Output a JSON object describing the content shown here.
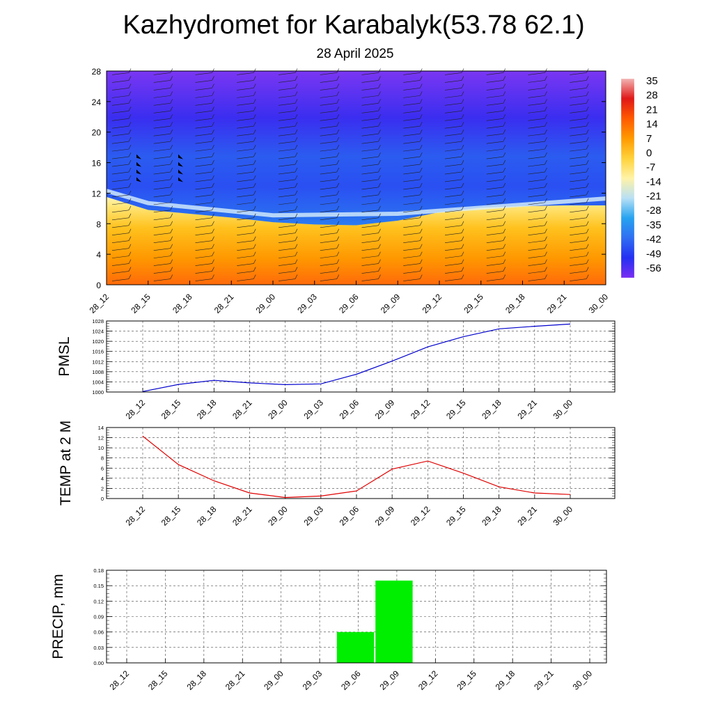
{
  "title": "Kazhydromet for Karabalyk(53.78 62.1)",
  "subtitle": "28 April 2025",
  "colors": {
    "pmsl_line": "#0000cc",
    "temp_line": "#e00000",
    "precip_bar": "#00ee00"
  },
  "chart_data": [
    {
      "type": "heatmap",
      "name": "cross-section",
      "y": {
        "ticks": [
          0,
          4,
          8,
          12,
          16,
          20,
          24,
          28
        ],
        "range": [
          0,
          28
        ]
      },
      "x_ticks": [
        "28_12",
        "28_15",
        "28_18",
        "28_21",
        "29_00",
        "29_03",
        "29_06",
        "29_09",
        "29_12",
        "29_15",
        "29_18",
        "29_21",
        "30_00"
      ],
      "freezing_level": [
        11.5,
        9.8,
        9.3,
        8.8,
        8.2,
        7.9,
        7.8,
        8.4,
        9.5,
        10.1,
        10.3,
        10.4,
        10.4
      ],
      "colorbar": {
        "labels": [
          "35",
          "28",
          "21",
          "14",
          "7",
          "0",
          "-7",
          "-14",
          "-21",
          "-28",
          "-35",
          "-42",
          "-49",
          "-56"
        ],
        "stops": [
          "#f2b3b3",
          "#e01818",
          "#ff5a00",
          "#ff9a00",
          "#ffd23a",
          "#fff3a8",
          "#b8e0f5",
          "#27a3f0",
          "#2f6ef2",
          "#2430f2",
          "#7a2ef2"
        ]
      },
      "grid": false
    },
    {
      "type": "line",
      "ylabel": "PMSL",
      "x": [
        "28_12",
        "28_15",
        "28_18",
        "28_21",
        "29_00",
        "29_03",
        "29_06",
        "29_09",
        "29_12",
        "29_15",
        "29_18",
        "29_21",
        "30_00"
      ],
      "series": [
        {
          "values": [
            1000.2,
            1003.0,
            1004.6,
            1003.6,
            1002.9,
            1003.2,
            1007.0,
            1012.2,
            1017.8,
            1021.8,
            1024.9,
            1025.9,
            1026.8
          ]
        }
      ],
      "ylim": [
        1000,
        1028
      ],
      "yticks": [
        "1000",
        "1004",
        "1008",
        "1012",
        "1016",
        "1020",
        "1024",
        "1028"
      ],
      "grid": true
    },
    {
      "type": "line",
      "ylabel": "TEMP at 2 M",
      "x": [
        "28_12",
        "28_15",
        "28_18",
        "28_21",
        "29_00",
        "29_03",
        "29_06",
        "29_09",
        "29_12",
        "29_15",
        "29_18",
        "29_21",
        "30_00"
      ],
      "series": [
        {
          "values": [
            12.3,
            6.7,
            3.5,
            1.1,
            0.2,
            0.5,
            1.5,
            5.8,
            7.4,
            5.0,
            2.3,
            1.1,
            0.8
          ]
        }
      ],
      "ylim": [
        0,
        14
      ],
      "yticks": [
        "0",
        "2",
        "4",
        "6",
        "8",
        "10",
        "12",
        "14"
      ],
      "grid": true
    },
    {
      "type": "bar",
      "ylabel": "PRECIP, mm",
      "categories": [
        "28_12",
        "28_15",
        "28_18",
        "28_21",
        "29_00",
        "29_03",
        "29_06",
        "29_09",
        "29_12",
        "29_15",
        "29_18",
        "29_21",
        "30_00"
      ],
      "values": [
        0,
        0,
        0,
        0,
        0,
        0,
        0.06,
        0.16,
        0,
        0,
        0,
        0,
        0
      ],
      "ylim": [
        0,
        0.18
      ],
      "yticks": [
        "0.00",
        "0.03",
        "0.06",
        "0.09",
        "0.12",
        "0.15",
        "0.18"
      ],
      "grid": true
    }
  ]
}
